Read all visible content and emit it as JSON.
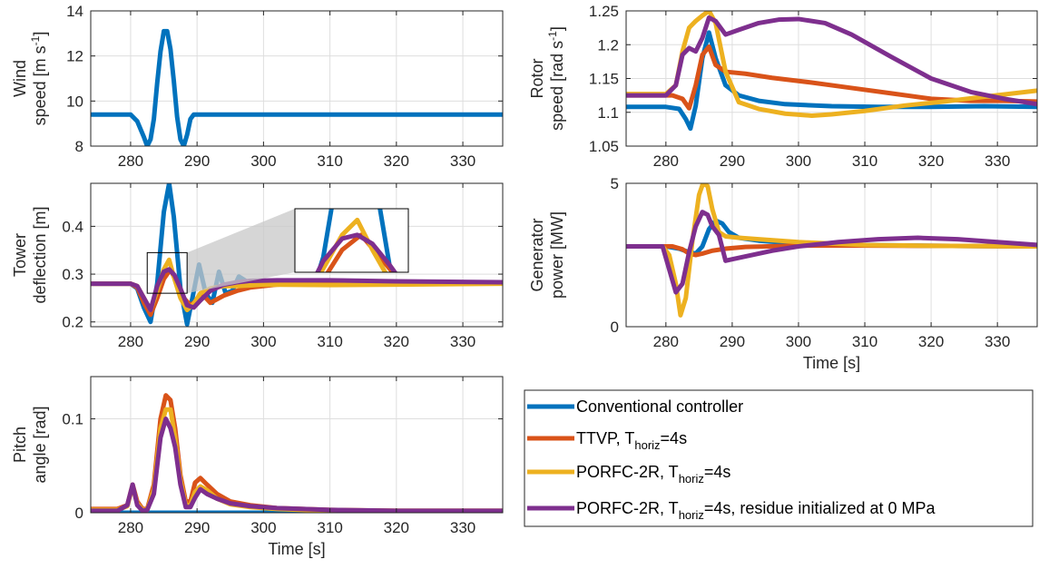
{
  "colors": {
    "conventional": "#0072BD",
    "ttvp": "#D95319",
    "porfc": "#EDB120",
    "porfc_res": "#7E2F8E"
  },
  "legend": {
    "items": [
      {
        "key": "conventional",
        "label": "Conventional controller"
      },
      {
        "key": "ttvp",
        "label": "TTVP, T",
        "sub": "horiz",
        "suffix": "=4s"
      },
      {
        "key": "porfc",
        "label": "PORFC-2R, T",
        "sub": "horiz",
        "suffix": "=4s"
      },
      {
        "key": "porfc_res",
        "label": "PORFC-2R, T",
        "sub": "horiz",
        "suffix": "=4s, residue initialized at 0 MPa"
      }
    ]
  },
  "chart_data": [
    {
      "id": "wind",
      "type": "line",
      "ylabel": [
        "Wind",
        "speed [m s",
        "-1",
        "]"
      ],
      "xlabel": "",
      "xlim": [
        274,
        336
      ],
      "ylim": [
        8,
        14
      ],
      "xticks": [
        280,
        290,
        300,
        310,
        320,
        330
      ],
      "yticks": [
        8,
        10,
        12,
        14
      ],
      "grid": true,
      "series": [
        {
          "key": "conventional",
          "x": [
            274,
            280,
            281,
            282,
            282.5,
            283,
            283.5,
            284,
            284.5,
            285,
            285.5,
            286,
            286.5,
            287,
            287.5,
            288,
            288.5,
            289,
            289.5,
            290,
            336
          ],
          "y": [
            9.4,
            9.4,
            9.1,
            8.4,
            8.0,
            8.3,
            9.2,
            10.8,
            12.2,
            13.1,
            13.1,
            12.3,
            10.9,
            9.3,
            8.3,
            8.0,
            8.5,
            9.2,
            9.4,
            9.4,
            9.4
          ]
        }
      ]
    },
    {
      "id": "rotor",
      "type": "line",
      "ylabel": [
        "Rotor",
        "speed [rad s",
        "-1",
        "]"
      ],
      "xlabel": "",
      "xlim": [
        274,
        336
      ],
      "ylim": [
        1.05,
        1.25
      ],
      "xticks": [
        280,
        290,
        300,
        310,
        320,
        330
      ],
      "yticks": [
        1.05,
        1.1,
        1.15,
        1.2,
        1.25
      ],
      "yticklabels": [
        "1.05",
        "1.1",
        "1.15",
        "1.2",
        "1.25"
      ],
      "grid": true,
      "series": [
        {
          "key": "conventional",
          "x": [
            274,
            280,
            282,
            283,
            283.7,
            284.5,
            285.5,
            286.5,
            287.5,
            289,
            291,
            294,
            298,
            305,
            312,
            320,
            328,
            336
          ],
          "y": [
            1.108,
            1.108,
            1.105,
            1.09,
            1.076,
            1.11,
            1.18,
            1.218,
            1.18,
            1.14,
            1.125,
            1.117,
            1.112,
            1.109,
            1.108,
            1.108,
            1.109,
            1.108
          ]
        },
        {
          "key": "ttvp",
          "x": [
            274,
            281,
            282.5,
            283.5,
            284.5,
            285.5,
            286.5,
            287.5,
            289,
            292,
            296,
            302,
            308,
            314,
            320,
            326,
            331,
            336
          ],
          "y": [
            1.125,
            1.125,
            1.12,
            1.106,
            1.14,
            1.185,
            1.197,
            1.17,
            1.16,
            1.157,
            1.151,
            1.144,
            1.136,
            1.128,
            1.12,
            1.117,
            1.117,
            1.116
          ]
        },
        {
          "key": "porfc",
          "x": [
            274,
            280,
            281.5,
            282.5,
            283.5,
            284.5,
            285.5,
            286.5,
            287.5,
            289,
            291,
            294,
            298,
            302,
            305,
            310,
            316,
            322,
            328,
            336
          ],
          "y": [
            1.127,
            1.127,
            1.14,
            1.19,
            1.225,
            1.235,
            1.243,
            1.25,
            1.232,
            1.16,
            1.115,
            1.105,
            1.098,
            1.095,
            1.097,
            1.102,
            1.11,
            1.116,
            1.123,
            1.132
          ]
        },
        {
          "key": "porfc_res",
          "x": [
            274,
            280,
            281.5,
            282.5,
            283.5,
            284.5,
            285.5,
            286.5,
            287.5,
            289,
            291,
            294,
            297,
            300,
            304,
            308,
            314,
            320,
            326,
            331,
            336
          ],
          "y": [
            1.125,
            1.125,
            1.14,
            1.185,
            1.195,
            1.19,
            1.21,
            1.24,
            1.235,
            1.215,
            1.222,
            1.232,
            1.237,
            1.238,
            1.232,
            1.215,
            1.182,
            1.15,
            1.13,
            1.12,
            1.112
          ]
        }
      ]
    },
    {
      "id": "tower",
      "type": "line",
      "ylabel": [
        "Tower",
        "deflection [m]"
      ],
      "xlabel": "",
      "xlim": [
        274,
        336
      ],
      "ylim": [
        0.19,
        0.49
      ],
      "xticks": [
        280,
        290,
        300,
        310,
        320,
        330
      ],
      "yticks": [
        0.2,
        0.3,
        0.4
      ],
      "yticklabels": [
        "0.2",
        "0.3",
        "0.4"
      ],
      "grid": true,
      "series": [
        {
          "key": "conventional",
          "x": [
            274,
            280,
            281,
            282,
            283,
            284,
            285,
            285.8,
            286.5,
            287.5,
            288.5,
            289.3,
            290.3,
            291.3,
            292.3,
            293.3,
            294.3,
            295.3,
            296.3,
            298,
            300,
            305,
            336
          ],
          "y": [
            0.28,
            0.28,
            0.27,
            0.23,
            0.2,
            0.28,
            0.43,
            0.49,
            0.42,
            0.27,
            0.195,
            0.25,
            0.32,
            0.26,
            0.24,
            0.305,
            0.26,
            0.265,
            0.295,
            0.28,
            0.282,
            0.282,
            0.282
          ]
        },
        {
          "key": "ttvp",
          "x": [
            274,
            280,
            281,
            282,
            283,
            284,
            285,
            286,
            287,
            288,
            289,
            290,
            291,
            292,
            294,
            296,
            298,
            302,
            310,
            320,
            336
          ],
          "y": [
            0.28,
            0.28,
            0.272,
            0.24,
            0.215,
            0.25,
            0.29,
            0.31,
            0.28,
            0.25,
            0.235,
            0.245,
            0.255,
            0.24,
            0.255,
            0.265,
            0.272,
            0.278,
            0.282,
            0.282,
            0.282
          ]
        },
        {
          "key": "porfc",
          "x": [
            274,
            280,
            281,
            282,
            283,
            284,
            285,
            285.8,
            286.6,
            287.5,
            288.5,
            289.5,
            290.5,
            292,
            294,
            296,
            300,
            310,
            320,
            336
          ],
          "y": [
            0.28,
            0.28,
            0.275,
            0.25,
            0.225,
            0.265,
            0.31,
            0.33,
            0.29,
            0.25,
            0.225,
            0.238,
            0.26,
            0.27,
            0.275,
            0.275,
            0.278,
            0.277,
            0.278,
            0.28
          ]
        },
        {
          "key": "porfc_res",
          "x": [
            274,
            280,
            281,
            282,
            283,
            284,
            285,
            285.8,
            286.6,
            287.5,
            288.5,
            289.5,
            290.5,
            292,
            294,
            296,
            298,
            302,
            310,
            320,
            336
          ],
          "y": [
            0.28,
            0.28,
            0.275,
            0.25,
            0.225,
            0.275,
            0.305,
            0.31,
            0.298,
            0.27,
            0.235,
            0.23,
            0.245,
            0.265,
            0.278,
            0.283,
            0.286,
            0.287,
            0.287,
            0.285,
            0.283
          ]
        }
      ],
      "inset": {
        "xlim": [
          282.5,
          288.5
        ],
        "ylim": [
          0.26,
          0.345
        ]
      }
    },
    {
      "id": "gen",
      "type": "line",
      "ylabel": [
        "Generator",
        "power [MW]"
      ],
      "xlabel": "Time [s]",
      "xlim": [
        274,
        336
      ],
      "ylim": [
        0,
        5
      ],
      "xticks": [
        280,
        290,
        300,
        310,
        320,
        330
      ],
      "yticks": [
        0,
        5
      ],
      "grid": true,
      "series": [
        {
          "key": "conventional",
          "x": [
            274,
            280,
            282,
            283.5,
            284.5,
            285.5,
            286.5,
            287.5,
            288.5,
            289.5,
            291,
            294,
            300,
            310,
            320,
            336
          ],
          "y": [
            2.8,
            2.8,
            2.72,
            2.6,
            2.55,
            2.8,
            3.4,
            3.7,
            3.6,
            3.3,
            3.1,
            3.0,
            2.9,
            2.85,
            2.82,
            2.8
          ]
        },
        {
          "key": "ttvp",
          "x": [
            274,
            281,
            282.5,
            283.5,
            284.5,
            285.5,
            287,
            289,
            292,
            300,
            310,
            320,
            336
          ],
          "y": [
            2.8,
            2.8,
            2.7,
            2.55,
            2.5,
            2.55,
            2.65,
            2.72,
            2.78,
            2.83,
            2.83,
            2.82,
            2.8
          ]
        },
        {
          "key": "porfc",
          "x": [
            274,
            279.5,
            280.5,
            281.5,
            282.2,
            283,
            284,
            285,
            285.6,
            286.3,
            287,
            288,
            289,
            291,
            294,
            300,
            310,
            320,
            336
          ],
          "y": [
            2.8,
            2.8,
            2.5,
            1.5,
            0.4,
            1.0,
            3.0,
            4.6,
            5.0,
            4.9,
            4.1,
            3.3,
            3.15,
            3.1,
            3.05,
            2.95,
            2.85,
            2.82,
            2.8
          ]
        },
        {
          "key": "porfc_res",
          "x": [
            274,
            279.5,
            280.5,
            281.5,
            282.5,
            283.5,
            284.5,
            285.5,
            286.3,
            287,
            288,
            289,
            290,
            292,
            296,
            300,
            306,
            312,
            318,
            324,
            330,
            336
          ],
          "y": [
            2.8,
            2.8,
            2.0,
            1.2,
            1.5,
            2.6,
            3.5,
            4.0,
            3.9,
            3.5,
            3.2,
            2.3,
            2.35,
            2.45,
            2.65,
            2.8,
            2.95,
            3.05,
            3.1,
            3.05,
            2.95,
            2.85
          ]
        }
      ]
    },
    {
      "id": "pitch",
      "type": "line",
      "ylabel": [
        "Pitch",
        "angle [rad]"
      ],
      "xlabel": "Time [s]",
      "xlim": [
        274,
        336
      ],
      "ylim": [
        0,
        0.145
      ],
      "xticks": [
        280,
        290,
        300,
        310,
        320,
        330
      ],
      "yticks": [
        0,
        0.1
      ],
      "yticklabels": [
        "0",
        "0.1"
      ],
      "grid": true,
      "series": [
        {
          "key": "conventional",
          "x": [
            274,
            336
          ],
          "y": [
            0,
            0
          ]
        },
        {
          "key": "ttvp",
          "x": [
            274,
            278,
            279.5,
            280.3,
            281,
            281.8,
            282.5,
            283.5,
            284.5,
            285.3,
            286,
            286.7,
            287.5,
            288.3,
            289,
            289.7,
            290.5,
            291.5,
            293,
            295,
            298,
            302,
            310,
            320,
            336
          ],
          "y": [
            0.004,
            0.004,
            0.008,
            0.03,
            0.012,
            0.004,
            0.004,
            0.03,
            0.1,
            0.125,
            0.12,
            0.09,
            0.04,
            0.012,
            0.012,
            0.032,
            0.037,
            0.03,
            0.02,
            0.012,
            0.008,
            0.005,
            0.003,
            0.002,
            0.002
          ]
        },
        {
          "key": "porfc",
          "x": [
            274,
            278,
            279.5,
            280.3,
            281,
            281.8,
            282.5,
            283.5,
            284.5,
            285.3,
            286,
            286.7,
            287.5,
            288.3,
            289,
            289.7,
            290.5,
            291.5,
            293,
            295,
            298,
            302,
            310,
            320,
            336
          ],
          "y": [
            0.003,
            0.003,
            0.007,
            0.028,
            0.01,
            0.003,
            0.003,
            0.025,
            0.09,
            0.11,
            0.11,
            0.08,
            0.035,
            0.008,
            0.008,
            0.022,
            0.028,
            0.024,
            0.015,
            0.009,
            0.006,
            0.004,
            0.002,
            0.002,
            0.002
          ]
        },
        {
          "key": "porfc_res",
          "x": [
            274,
            278,
            279.5,
            280.3,
            281,
            281.8,
            282.5,
            283.5,
            284.5,
            285.3,
            286,
            286.7,
            287.5,
            288.3,
            289,
            289.7,
            290.5,
            291.5,
            293,
            295,
            298,
            302,
            310,
            320,
            336
          ],
          "y": [
            0.002,
            0.002,
            0.008,
            0.03,
            0.008,
            0.002,
            0.003,
            0.02,
            0.08,
            0.1,
            0.09,
            0.07,
            0.03,
            0.006,
            0.006,
            0.016,
            0.025,
            0.02,
            0.015,
            0.01,
            0.007,
            0.005,
            0.003,
            0.002,
            0.002
          ]
        }
      ]
    }
  ]
}
